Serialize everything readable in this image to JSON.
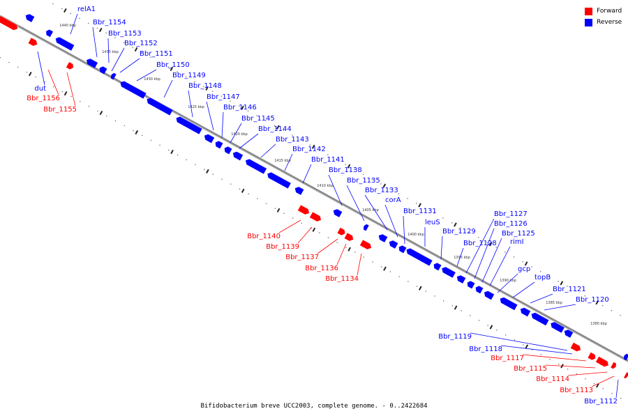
{
  "legend": {
    "items": [
      {
        "label": "Forward",
        "color": "#ff0000"
      },
      {
        "label": "Reverse",
        "color": "#0000ff"
      }
    ]
  },
  "caption": "Bifidobacterium breve UCC2003, complete genome. - 0..2422684",
  "colors": {
    "forward": "#ff0000",
    "reverse": "#0000ff",
    "backbone": "#8a8a8a"
  },
  "kbp_ticks": [
    "1440 kbp",
    "1435 kbp",
    "1430 kbp",
    "1425 kbp",
    "1420 kbp",
    "1415 kbp",
    "1410 kbp",
    "1405 kbp",
    "1400 kbp",
    "1395 kbp",
    "1390 kbp",
    "1385 kbp",
    "1380 kbp"
  ],
  "reverse_genes": [
    "relA1",
    "Bbr_1154",
    "Bbr_1153",
    "Bbr_1152",
    "Bbr_1151",
    "Bbr_1150",
    "Bbr_1149",
    "Bbr_1148",
    "Bbr_1147",
    "Bbr_1146",
    "Bbr_1145",
    "Bbr_1144",
    "Bbr_1143",
    "Bbr_1142",
    "Bbr_1141",
    "Bbr_1138",
    "Bbr_1135",
    "Bbr_1133",
    "corA",
    "Bbr_1131",
    "leuS",
    "Bbr_1129",
    "Bbr_1128",
    "Bbr_1127",
    "Bbr_1126",
    "Bbr_1125",
    "rimI",
    "gcp",
    "topB",
    "Bbr_1121",
    "Bbr_1120",
    "dut",
    "Bbr_1119",
    "Bbr_1118",
    "Bbr_1112"
  ],
  "forward_genes": [
    "Bbr_1156",
    "Bbr_1155",
    "Bbr_1140",
    "Bbr_1139",
    "Bbr_1137",
    "Bbr_1136",
    "Bbr_1134",
    "Bbr_1117",
    "Bbr_1115",
    "Bbr_1114",
    "Bbr_1113"
  ]
}
